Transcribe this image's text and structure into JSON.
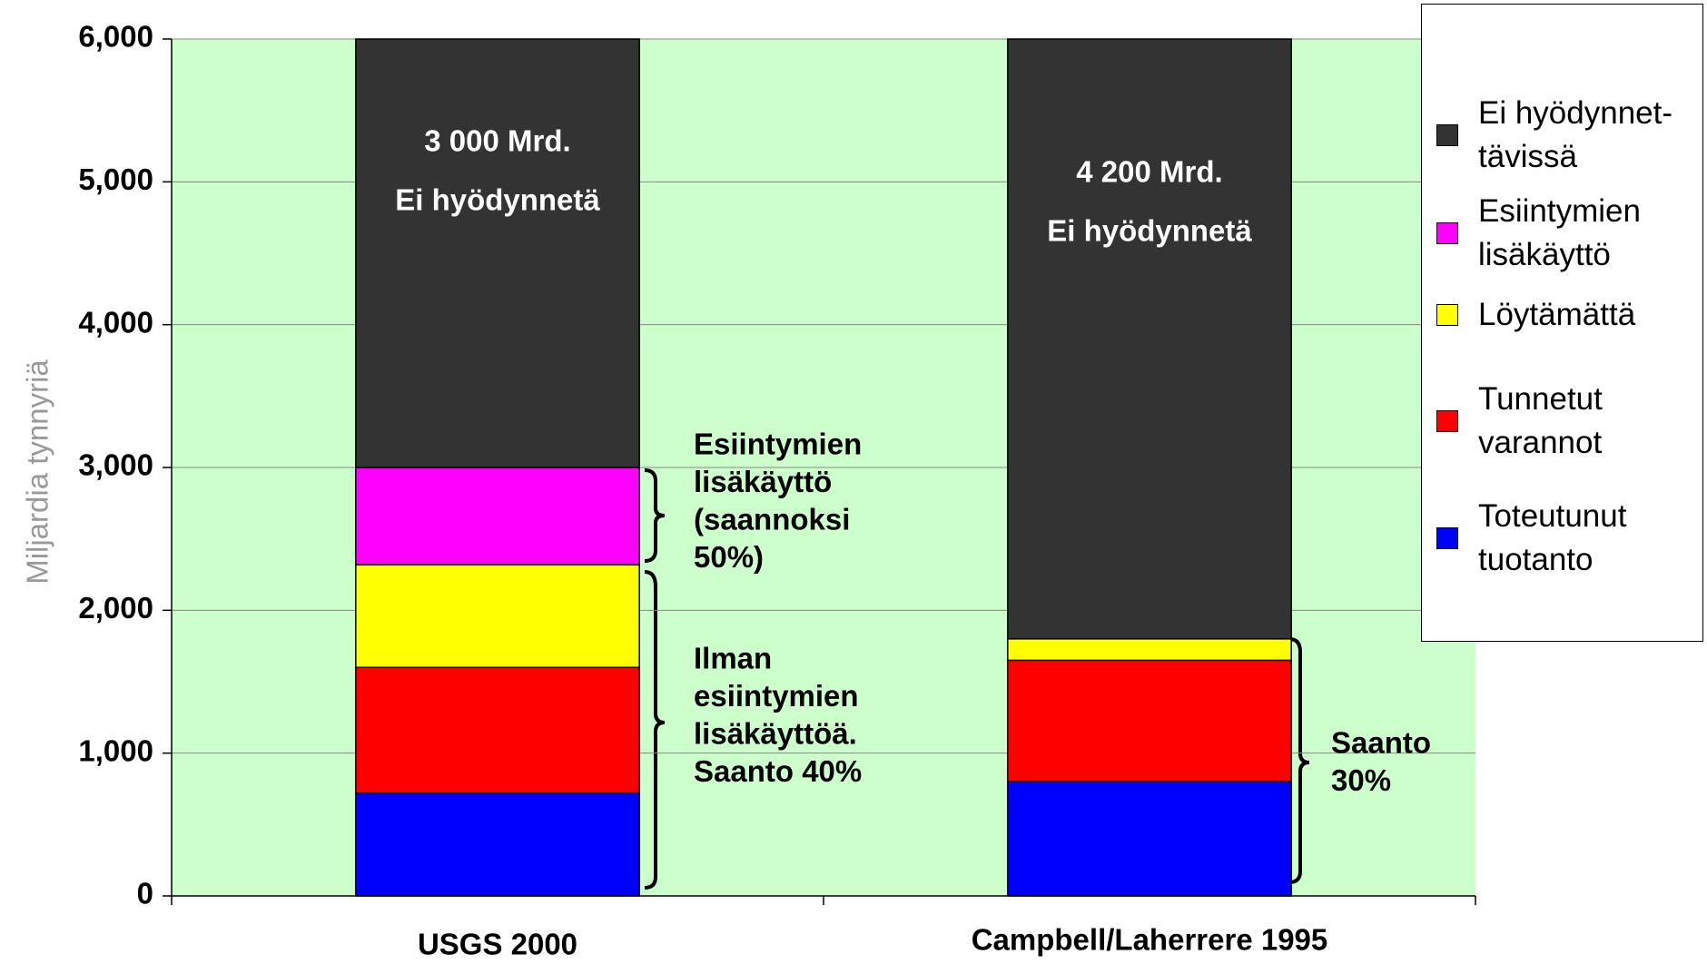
{
  "chart_data": {
    "type": "stacked_bar",
    "y_label": "Miljardia tynnyriä",
    "categories": [
      "USGS 2000",
      "Campbell/Laherrere 1995"
    ],
    "series": [
      {
        "name": "Toteutunut tuotanto",
        "color": "#0000ff",
        "values": [
          720,
          800
        ]
      },
      {
        "name": "Tunnetut varannot",
        "color": "#ff0000",
        "values": [
          880,
          850
        ]
      },
      {
        "name": "Löytämättä",
        "color": "#ffff00",
        "values": [
          720,
          150
        ]
      },
      {
        "name": "Esiintymien lisäkäyttö",
        "color": "#ff00ff",
        "values": [
          680,
          0
        ]
      },
      {
        "name": "Ei hyödynnet-tävissä",
        "color": "#333333",
        "values": [
          3000,
          4200
        ]
      }
    ],
    "ylim": [
      0,
      6000
    ],
    "yticks": [
      0,
      {
        "value": 1000,
        "label": "1,000"
      },
      {
        "value": 2000,
        "label": "2,000"
      },
      {
        "value": 3000,
        "label": "3,000"
      },
      {
        "value": 4000,
        "label": "4,000"
      },
      {
        "value": 5000,
        "label": "5,000"
      },
      {
        "value": 6000,
        "label": "6,000"
      }
    ],
    "grid": true,
    "background": "#ccffcc",
    "legend": "right",
    "bar_labels": [
      [
        "3 000 Mrd.",
        "Ei hyödynnetä"
      ],
      [
        "4 200 Mrd.",
        "Ei hyödynnetä"
      ]
    ],
    "annotations": [
      [
        "Esiintymien",
        "lisäkäyttö",
        "(saannoksi",
        "50%)"
      ],
      [
        "Ilman",
        "esiintymien",
        "lisäkäyttöä.",
        "Saanto 40%"
      ],
      [
        "Saanto",
        "30%"
      ]
    ]
  }
}
